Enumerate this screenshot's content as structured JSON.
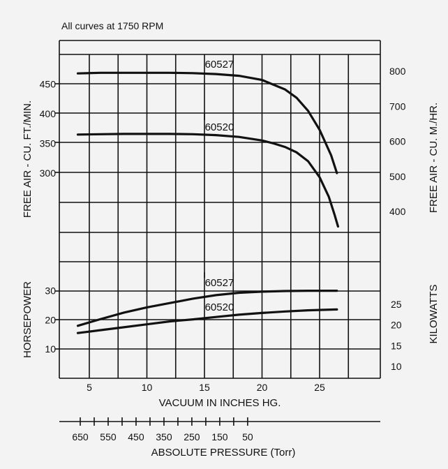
{
  "chart_data": {
    "type": "line",
    "note": "All curves at 1750 RPM",
    "x_axis": {
      "label": "VACUUM IN INCHES HG.",
      "ticks": [
        5,
        10,
        15,
        20,
        25
      ],
      "range": [
        3,
        28
      ]
    },
    "x2_axis": {
      "label": "ABSOLUTE PRESSURE (Torr)",
      "ticks": [
        650,
        550,
        450,
        350,
        250,
        150,
        50
      ]
    },
    "upper_panel": {
      "y_left": {
        "label": "FREE AIR - CU. FT./MIN.",
        "ticks": [
          300,
          350,
          400,
          450
        ],
        "range": [
          200,
          500
        ]
      },
      "y_right": {
        "label": "FREE AIR - CU. M./HR.",
        "ticks": [
          400,
          500,
          600,
          700,
          800
        ]
      },
      "series": [
        {
          "name": "60527",
          "x": [
            4,
            6,
            8,
            10,
            12,
            14,
            16,
            18,
            20,
            22,
            23,
            24,
            25,
            26,
            26.5
          ],
          "y": [
            468,
            469,
            469,
            469,
            469,
            468.5,
            467,
            464,
            457,
            441,
            427,
            405,
            373,
            330,
            300
          ]
        },
        {
          "name": "60520",
          "x": [
            4,
            6,
            8,
            10,
            12,
            14,
            16,
            18,
            20,
            21,
            22,
            23,
            24,
            25,
            25.8,
            26.3,
            26.6
          ],
          "y": [
            365,
            365.5,
            366,
            366,
            366,
            365.5,
            364,
            361,
            355,
            350,
            344,
            335,
            320,
            293,
            260,
            230,
            210
          ]
        }
      ]
    },
    "lower_panel": {
      "y_left": {
        "label": "HORSEPOWER",
        "ticks": [
          10,
          20,
          30
        ],
        "range": [
          0,
          40
        ]
      },
      "y_right": {
        "label": "KILOWATTS",
        "ticks": [
          10,
          15,
          20,
          25
        ]
      },
      "series": [
        {
          "name": "60527",
          "x": [
            4,
            6,
            8,
            10,
            12,
            14,
            16,
            18,
            20,
            22,
            24,
            26.5
          ],
          "y": [
            18,
            20.3,
            22.5,
            24.3,
            25.8,
            27.3,
            28.5,
            29.3,
            29.7,
            29.9,
            30.0,
            30.0
          ]
        },
        {
          "name": "60520",
          "x": [
            4,
            6,
            8,
            10,
            12,
            14,
            16,
            18,
            20,
            22,
            24,
            26.5
          ],
          "y": [
            15.5,
            16.5,
            17.5,
            18.5,
            19.5,
            20.2,
            21.0,
            21.8,
            22.4,
            22.9,
            23.3,
            23.6
          ]
        }
      ]
    }
  }
}
